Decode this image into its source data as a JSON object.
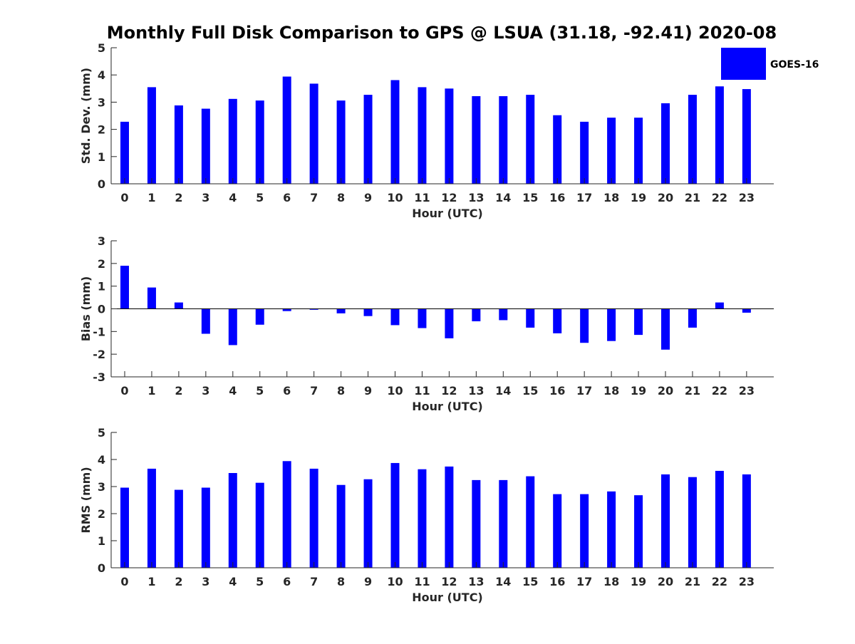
{
  "title": "Monthly Full Disk Comparison to GPS @ LSUA (31.18, -92.41) 2020-08",
  "legend": {
    "label": "GOES-16",
    "placement": "top-right"
  },
  "colors": {
    "bar": "#0000ff",
    "axis": "#262626",
    "title": "#000000"
  },
  "chart_data": [
    {
      "type": "bar",
      "ylabel": "Std. Dev. (mm)",
      "xlabel": "Hour (UTC)",
      "ylim": [
        0,
        5
      ],
      "yticks": [
        0,
        1,
        2,
        3,
        4,
        5
      ],
      "grid": false,
      "categories": [
        "0",
        "1",
        "2",
        "3",
        "4",
        "5",
        "6",
        "7",
        "8",
        "9",
        "10",
        "11",
        "12",
        "13",
        "14",
        "15",
        "16",
        "17",
        "18",
        "19",
        "20",
        "21",
        "22",
        "23"
      ],
      "series": [
        {
          "name": "GOES-16",
          "values": [
            2.28,
            3.55,
            2.88,
            2.76,
            3.12,
            3.06,
            3.94,
            3.68,
            3.06,
            3.27,
            3.81,
            3.55,
            3.5,
            3.22,
            3.22,
            3.27,
            2.52,
            2.28,
            2.43,
            2.43,
            2.96,
            3.27,
            3.58,
            3.48
          ]
        }
      ]
    },
    {
      "type": "bar",
      "ylabel": "Bias (mm)",
      "xlabel": "Hour (UTC)",
      "ylim": [
        -3,
        3
      ],
      "yticks": [
        -3,
        -2,
        -1,
        0,
        1,
        2,
        3
      ],
      "grid": false,
      "categories": [
        "0",
        "1",
        "2",
        "3",
        "4",
        "5",
        "6",
        "7",
        "8",
        "9",
        "10",
        "11",
        "12",
        "13",
        "14",
        "15",
        "16",
        "17",
        "18",
        "19",
        "20",
        "21",
        "22",
        "23"
      ],
      "series": [
        {
          "name": "GOES-16",
          "values": [
            1.9,
            0.94,
            0.28,
            -1.1,
            -1.6,
            -0.7,
            -0.1,
            -0.04,
            -0.2,
            -0.32,
            -0.72,
            -0.85,
            -1.3,
            -0.55,
            -0.5,
            -0.83,
            -1.08,
            -1.5,
            -1.42,
            -1.15,
            -1.8,
            -0.83,
            0.28,
            -0.17
          ]
        }
      ]
    },
    {
      "type": "bar",
      "ylabel": "RMS (mm)",
      "xlabel": "Hour (UTC)",
      "ylim": [
        0,
        5
      ],
      "yticks": [
        0,
        1,
        2,
        3,
        4,
        5
      ],
      "grid": false,
      "categories": [
        "0",
        "1",
        "2",
        "3",
        "4",
        "5",
        "6",
        "7",
        "8",
        "9",
        "10",
        "11",
        "12",
        "13",
        "14",
        "15",
        "16",
        "17",
        "18",
        "19",
        "20",
        "21",
        "22",
        "23"
      ],
      "series": [
        {
          "name": "GOES-16",
          "values": [
            2.96,
            3.66,
            2.88,
            2.96,
            3.5,
            3.14,
            3.94,
            3.66,
            3.06,
            3.27,
            3.87,
            3.64,
            3.74,
            3.24,
            3.24,
            3.38,
            2.72,
            2.72,
            2.82,
            2.68,
            3.45,
            3.35,
            3.58,
            3.45
          ]
        }
      ]
    }
  ]
}
